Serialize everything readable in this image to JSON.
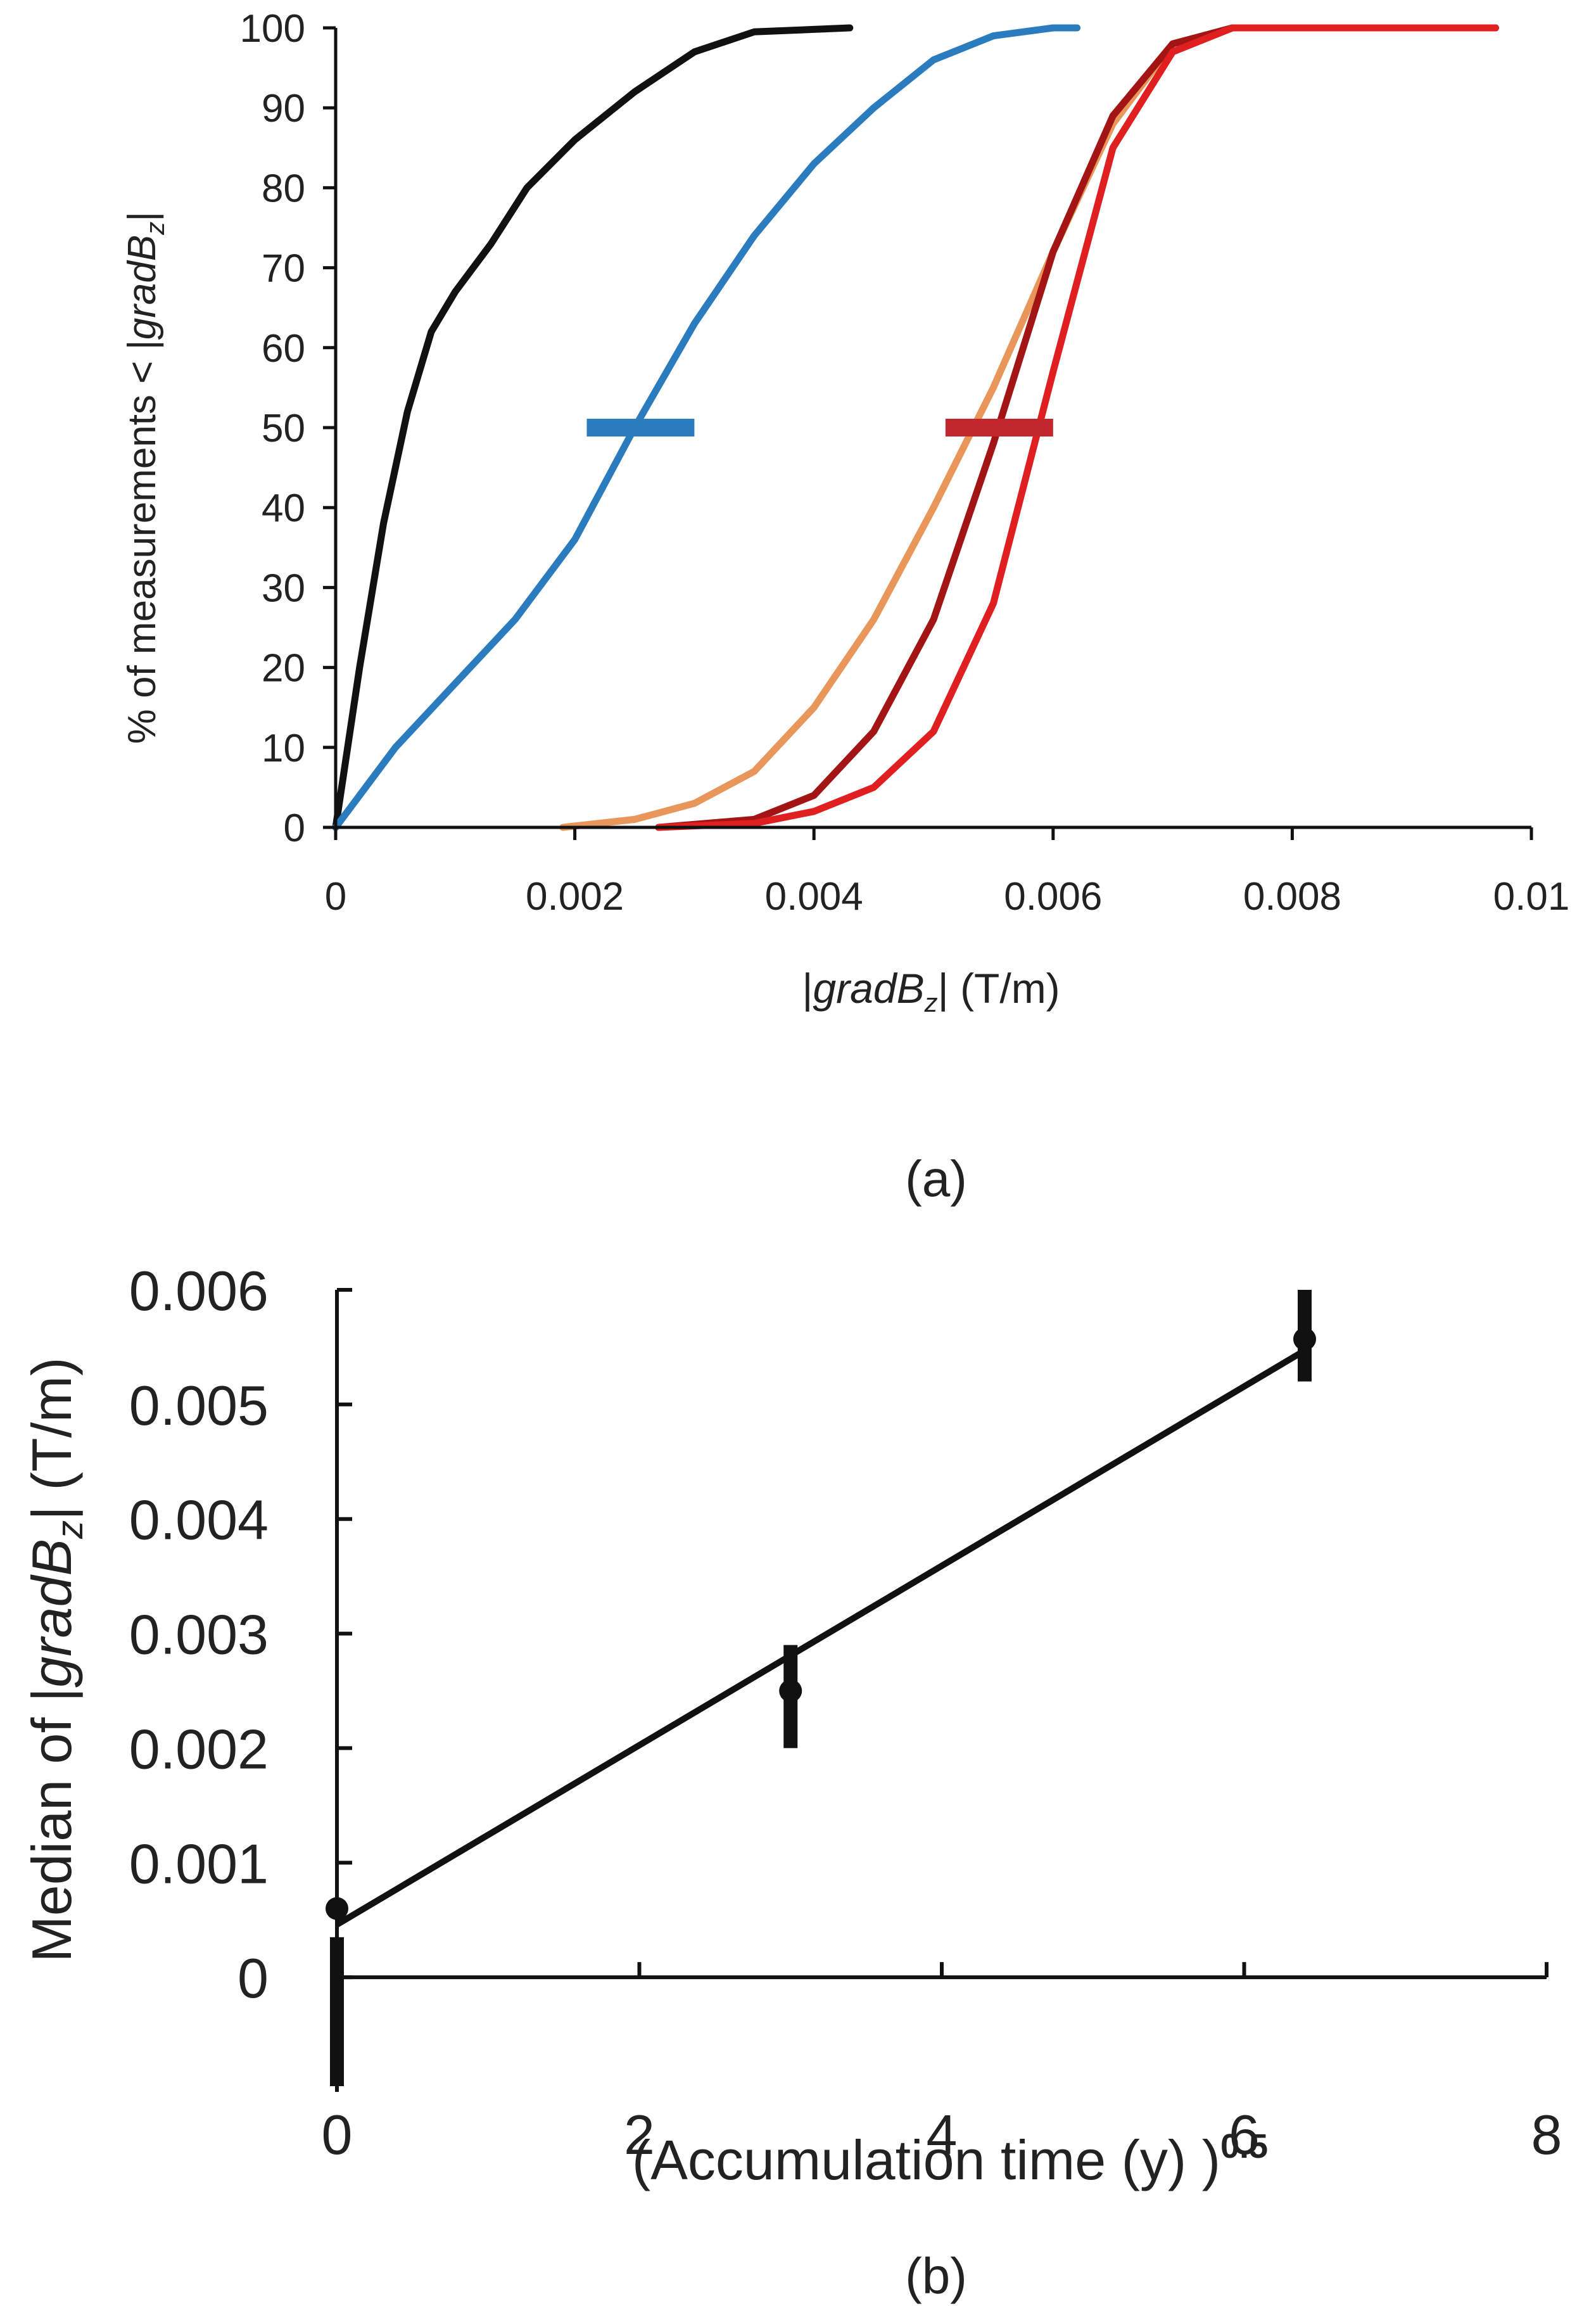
{
  "chart_data": [
    {
      "id": "a",
      "type": "line",
      "caption": "(a)",
      "xlabel_prefix": "|",
      "xlabel_var": "gradB",
      "xlabel_sub": "z",
      "xlabel_suffix": "|  (T/m)",
      "ylabel_prefix": "% of measurements < |",
      "ylabel_var": "gradB",
      "ylabel_sub": "z",
      "ylabel_suffix": "|",
      "xlim": [
        0,
        0.01
      ],
      "ylim": [
        0,
        100
      ],
      "x_ticks": [
        {
          "value": 0,
          "label": "0"
        },
        {
          "value": 0.002,
          "label": "0.002"
        },
        {
          "value": 0.004,
          "label": "0.004"
        },
        {
          "value": 0.006,
          "label": "0.006"
        },
        {
          "value": 0.008,
          "label": "0.008"
        },
        {
          "value": 0.01,
          "label": "0.01"
        }
      ],
      "y_ticks": [
        {
          "value": 0,
          "label": "0"
        },
        {
          "value": 10,
          "label": "10"
        },
        {
          "value": 20,
          "label": "20"
        },
        {
          "value": 30,
          "label": "30"
        },
        {
          "value": 40,
          "label": "40"
        },
        {
          "value": 50,
          "label": "50"
        },
        {
          "value": 60,
          "label": "60"
        },
        {
          "value": 70,
          "label": "70"
        },
        {
          "value": 80,
          "label": "80"
        },
        {
          "value": 90,
          "label": "90"
        },
        {
          "value": 100,
          "label": "100"
        }
      ],
      "grid": false,
      "series": [
        {
          "name": "black",
          "color": "#111111",
          "points": [
            [
              0,
              0
            ],
            [
              0.0002,
              20
            ],
            [
              0.0004,
              38
            ],
            [
              0.0006,
              52
            ],
            [
              0.0008,
              62
            ],
            [
              0.001,
              67
            ],
            [
              0.0013,
              73
            ],
            [
              0.0016,
              80
            ],
            [
              0.002,
              86
            ],
            [
              0.0025,
              92
            ],
            [
              0.003,
              97
            ],
            [
              0.0035,
              99.5
            ],
            [
              0.0043,
              100
            ]
          ]
        },
        {
          "name": "blue",
          "color": "#2b7bbf",
          "points": [
            [
              0,
              0
            ],
            [
              0.0005,
              10
            ],
            [
              0.001,
              18
            ],
            [
              0.0015,
              26
            ],
            [
              0.002,
              36
            ],
            [
              0.0025,
              50
            ],
            [
              0.003,
              63
            ],
            [
              0.0035,
              74
            ],
            [
              0.004,
              83
            ],
            [
              0.0045,
              90
            ],
            [
              0.005,
              96
            ],
            [
              0.0055,
              99
            ],
            [
              0.006,
              100
            ],
            [
              0.0062,
              100
            ]
          ]
        },
        {
          "name": "orange",
          "color": "#e8965a",
          "points": [
            [
              0.0019,
              0
            ],
            [
              0.0025,
              1
            ],
            [
              0.003,
              3
            ],
            [
              0.0035,
              7
            ],
            [
              0.004,
              15
            ],
            [
              0.0045,
              26
            ],
            [
              0.005,
              40
            ],
            [
              0.0055,
              55
            ],
            [
              0.006,
              72
            ],
            [
              0.0065,
              88
            ],
            [
              0.007,
              98
            ],
            [
              0.0075,
              100
            ],
            [
              0.0097,
              100
            ]
          ]
        },
        {
          "name": "dark-red",
          "color": "#a31515",
          "points": [
            [
              0.0027,
              0
            ],
            [
              0.0035,
              1
            ],
            [
              0.004,
              4
            ],
            [
              0.0045,
              12
            ],
            [
              0.005,
              26
            ],
            [
              0.0055,
              48
            ],
            [
              0.006,
              72
            ],
            [
              0.0065,
              89
            ],
            [
              0.007,
              98
            ],
            [
              0.0075,
              100
            ],
            [
              0.0097,
              100
            ]
          ]
        },
        {
          "name": "red",
          "color": "#e02020",
          "points": [
            [
              0.0027,
              0
            ],
            [
              0.0035,
              0.5
            ],
            [
              0.004,
              2
            ],
            [
              0.0045,
              5
            ],
            [
              0.005,
              12
            ],
            [
              0.0055,
              28
            ],
            [
              0.006,
              57
            ],
            [
              0.0065,
              85
            ],
            [
              0.007,
              97
            ],
            [
              0.0075,
              100
            ],
            [
              0.0097,
              100
            ]
          ]
        }
      ],
      "median_markers": [
        {
          "series": "blue",
          "color": "#2b7bbf",
          "y": 50,
          "x_from": 0.0021,
          "x_to": 0.003
        },
        {
          "series": "red",
          "color": "#c0282d",
          "y": 50,
          "x_from": 0.0051,
          "x_to": 0.006
        }
      ]
    },
    {
      "id": "b",
      "type": "scatter",
      "caption": "(b)",
      "xlabel_main": "(Accumulation time (y) )",
      "xlabel_sup": "0.5",
      "ylabel_prefix": "Median of |",
      "ylabel_var": "gradB",
      "ylabel_sub": "z",
      "ylabel_suffix": "|  (T/m)",
      "xlim": [
        0,
        8
      ],
      "ylim": [
        -0.001,
        0.006
      ],
      "x_ticks": [
        {
          "value": 0,
          "label": "0"
        },
        {
          "value": 2,
          "label": "2"
        },
        {
          "value": 4,
          "label": "4"
        },
        {
          "value": 6,
          "label": "6"
        },
        {
          "value": 8,
          "label": "8"
        }
      ],
      "y_ticks": [
        {
          "value": 0,
          "label": "0"
        },
        {
          "value": 0.001,
          "label": "0.001"
        },
        {
          "value": 0.002,
          "label": "0.002"
        },
        {
          "value": 0.003,
          "label": "0.003"
        },
        {
          "value": 0.004,
          "label": "0.004"
        },
        {
          "value": 0.005,
          "label": "0.005"
        },
        {
          "value": 0.006,
          "label": "0.006"
        }
      ],
      "grid": false,
      "points": [
        {
          "x": 0,
          "y": 0.0006,
          "err_low": -0.00095,
          "err_high": 0.00035
        },
        {
          "x": 3,
          "y": 0.0025,
          "err_low": 0.002,
          "err_high": 0.0029
        },
        {
          "x": 6.4,
          "y": 0.00557,
          "err_low": 0.0052,
          "err_high": 0.006
        }
      ],
      "fit_line": {
        "x": [
          0,
          6.4
        ],
        "y": [
          0.00046,
          0.00547
        ]
      }
    }
  ]
}
